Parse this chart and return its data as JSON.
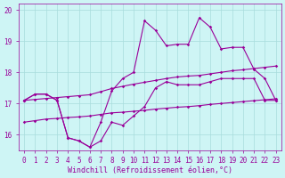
{
  "x_values": [
    0,
    1,
    2,
    3,
    4,
    5,
    6,
    7,
    8,
    9,
    10,
    11,
    12,
    13,
    14,
    15,
    16,
    17,
    18,
    19,
    20,
    21,
    22,
    23
  ],
  "main_line": [
    17.1,
    17.3,
    17.3,
    17.1,
    15.9,
    15.8,
    15.6,
    15.8,
    16.4,
    16.3,
    16.6,
    16.9,
    17.5,
    17.7,
    17.6,
    17.6,
    17.6,
    17.7,
    17.8,
    17.8,
    17.8,
    17.8,
    17.1,
    17.1
  ],
  "spiky_line": [
    17.1,
    17.3,
    17.3,
    17.1,
    15.9,
    15.8,
    15.6,
    16.4,
    17.4,
    17.8,
    18.0,
    19.65,
    19.35,
    18.85,
    18.9,
    18.9,
    19.75,
    19.45,
    18.75,
    18.8,
    18.8,
    18.1,
    17.8,
    17.1
  ],
  "trend_low": [
    16.4,
    16.45,
    16.5,
    16.52,
    16.55,
    16.57,
    16.6,
    16.65,
    16.7,
    16.72,
    16.75,
    16.78,
    16.82,
    16.85,
    16.88,
    16.9,
    16.93,
    16.97,
    17.0,
    17.03,
    17.06,
    17.09,
    17.12,
    17.15
  ],
  "trend_high": [
    17.1,
    17.13,
    17.16,
    17.19,
    17.22,
    17.25,
    17.28,
    17.38,
    17.48,
    17.55,
    17.62,
    17.68,
    17.74,
    17.8,
    17.85,
    17.88,
    17.9,
    17.95,
    18.0,
    18.05,
    18.08,
    18.12,
    18.16,
    18.2
  ],
  "line_color": "#990099",
  "bg_color": "#cef5f5",
  "grid_color": "#a8dcdc",
  "ylim": [
    15.5,
    20.2
  ],
  "xlim": [
    -0.5,
    23.5
  ],
  "yticks": [
    16,
    17,
    18,
    19,
    20
  ],
  "xlabel": "Windchill (Refroidissement éolien,°C)",
  "xlabel_fontsize": 6,
  "tick_fontsize": 5.5,
  "marker": "D",
  "marker_size": 1.8,
  "linewidth": 0.8
}
